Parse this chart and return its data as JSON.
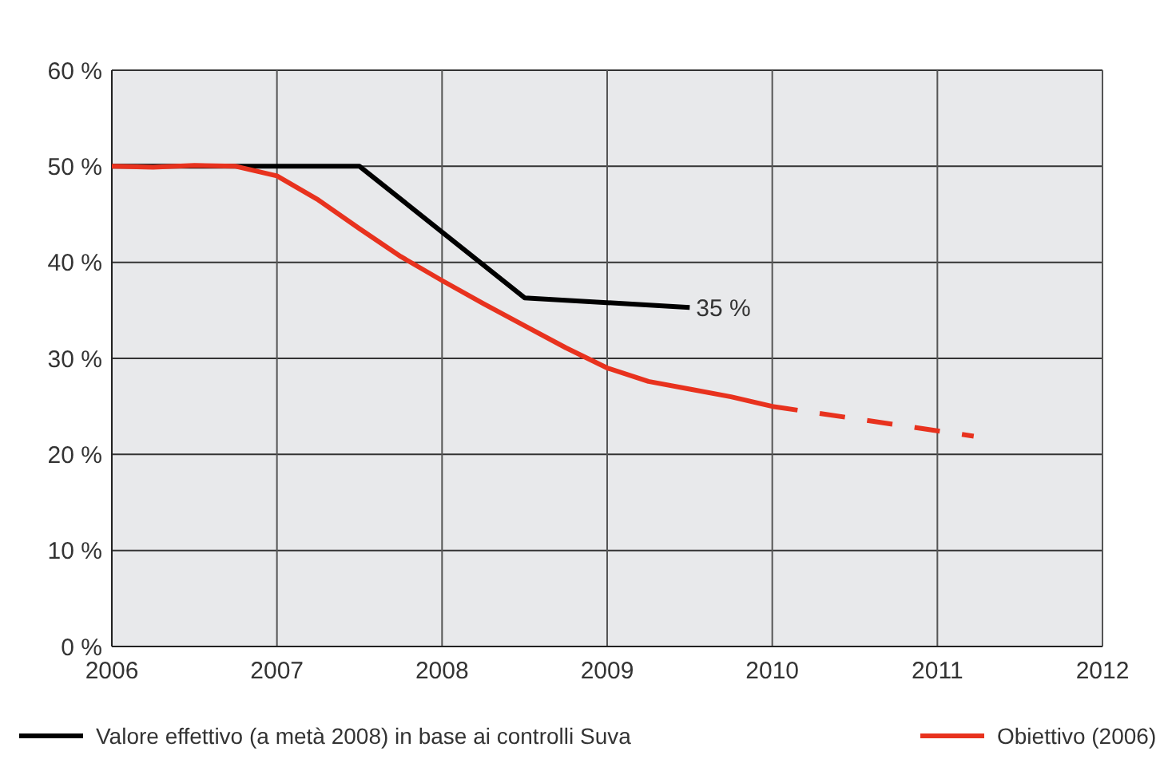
{
  "chart_data": {
    "type": "line",
    "xlim": [
      2006,
      2012
    ],
    "ylim": [
      0,
      60
    ],
    "xticks": [
      2006,
      2007,
      2008,
      2009,
      2010,
      2011,
      2012
    ],
    "yticks": [
      {
        "value": 0,
        "label": "0 %"
      },
      {
        "value": 10,
        "label": "10 %"
      },
      {
        "value": 20,
        "label": "20 %"
      },
      {
        "value": 30,
        "label": "30 %"
      },
      {
        "value": 40,
        "label": "40 %"
      },
      {
        "value": 50,
        "label": "50 %"
      },
      {
        "value": 60,
        "label": "60 %"
      }
    ],
    "grid": true,
    "legend": "bottom",
    "marker": "none",
    "series": [
      {
        "name": "Valore effettivo (a metà 2008) in base ai controlli Suva",
        "color": "#000000",
        "line_style": "solid",
        "x": [
          2006,
          2006.5,
          2007.5,
          2008.5,
          2009.5
        ],
        "values": [
          50,
          50,
          50,
          36.3,
          35.3
        ]
      },
      {
        "name": "Obiettivo (2006)",
        "color": "#e8321e",
        "line_style": "solid",
        "x": [
          2006,
          2006.25,
          2006.5,
          2006.75,
          2007,
          2007.25,
          2007.5,
          2007.75,
          2008,
          2008.25,
          2008.5,
          2008.75,
          2009,
          2009.25,
          2009.5,
          2009.75,
          2010
        ],
        "values": [
          50,
          49.9,
          50.1,
          50,
          49,
          46.5,
          43.5,
          40.6,
          38.1,
          35.7,
          33.4,
          31.1,
          29,
          27.6,
          26.8,
          26,
          25
        ]
      },
      {
        "color": "#e8321e",
        "line_style": "dashed",
        "x": [
          2010,
          2011.22
        ],
        "values": [
          25,
          21.9
        ]
      }
    ],
    "annotations": [
      {
        "text": "35 %",
        "x": 2009.5,
        "y": 35.3
      }
    ]
  }
}
